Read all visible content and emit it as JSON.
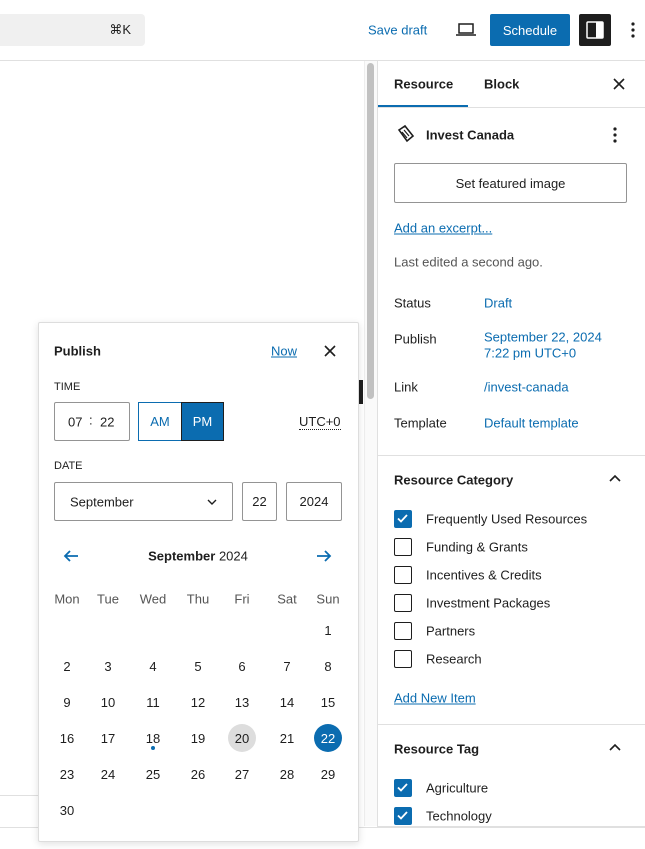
{
  "topbar": {
    "shortcut": "⌘K",
    "save_draft": "Save draft",
    "schedule": "Schedule"
  },
  "sidebar": {
    "tabs": [
      "Resource",
      "Block"
    ],
    "post_title": "Invest Canada",
    "featured_image_button": "Set featured image",
    "excerpt_link": "Add an excerpt...",
    "last_edited": "Last edited a second ago.",
    "fields": [
      {
        "label": "Status",
        "values": [
          "Draft"
        ]
      },
      {
        "label": "Publish",
        "values": [
          "September 22, 2024",
          "7:22 pm UTC+0"
        ]
      },
      {
        "label": "Link",
        "values": [
          "/invest-canada"
        ]
      },
      {
        "label": "Template",
        "values": [
          "Default template"
        ]
      }
    ],
    "category": {
      "title": "Resource Category",
      "items": [
        {
          "label": "Frequently Used Resources",
          "checked": true
        },
        {
          "label": "Funding & Grants",
          "checked": false
        },
        {
          "label": "Incentives & Credits",
          "checked": false
        },
        {
          "label": "Investment Packages",
          "checked": false
        },
        {
          "label": "Partners",
          "checked": false
        },
        {
          "label": "Research",
          "checked": false
        }
      ],
      "add_link": "Add New Item"
    },
    "tag": {
      "title": "Resource Tag",
      "items": [
        {
          "label": "Agriculture",
          "checked": true
        },
        {
          "label": "Technology",
          "checked": true
        }
      ]
    }
  },
  "popover": {
    "title": "Publish",
    "now": "Now",
    "time_label": "TIME",
    "hours": "07",
    "time_separator": ":",
    "minutes": "22",
    "periods": [
      {
        "label": "AM",
        "selected": false
      },
      {
        "label": "PM",
        "selected": true
      }
    ],
    "timezone": "UTC+0",
    "date_label": "DATE",
    "month": "September",
    "day": "22",
    "year": "2024",
    "calendar": {
      "month": "September",
      "year": "2024",
      "weekdays": [
        "Mon",
        "Tue",
        "Wed",
        "Thu",
        "Fri",
        "Sat",
        "Sun"
      ],
      "weeks": [
        [
          null,
          null,
          null,
          null,
          null,
          null,
          1
        ],
        [
          2,
          3,
          4,
          5,
          6,
          7,
          8
        ],
        [
          9,
          10,
          11,
          12,
          13,
          14,
          15
        ],
        [
          16,
          17,
          18,
          19,
          20,
          21,
          22
        ],
        [
          23,
          24,
          25,
          26,
          27,
          28,
          29
        ],
        [
          30,
          null,
          null,
          null,
          null,
          null,
          null
        ]
      ],
      "selected_day": 22,
      "highlighted_day": 20,
      "marked_days": [
        18
      ]
    }
  }
}
